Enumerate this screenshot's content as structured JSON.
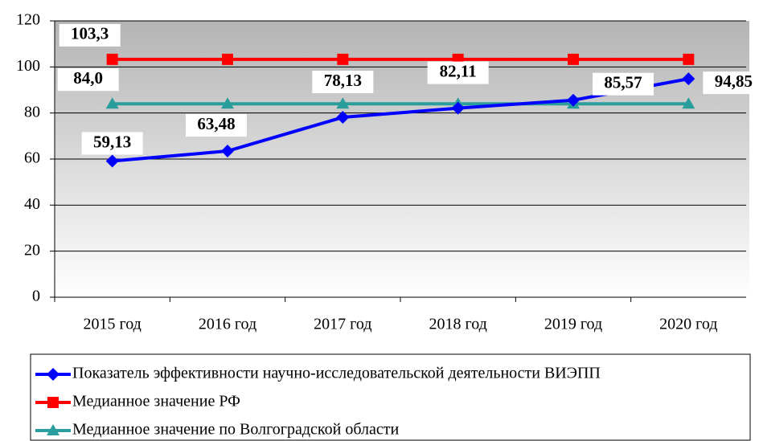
{
  "chart_data": {
    "type": "line",
    "categories": [
      "2015 год",
      "2016 год",
      "2017 год",
      "2018 год",
      "2019 год",
      "2020 год"
    ],
    "series": [
      {
        "name": "Показатель эффективности научно-исследовательской деятельности ВИЭПП",
        "color": "#0000ff",
        "marker": "diamond",
        "values": [
          59.13,
          63.48,
          78.13,
          82.11,
          85.57,
          94.85
        ],
        "value_labels": [
          "59,13",
          "63,48",
          "78,13",
          "82,11",
          "85,57",
          "94,85"
        ]
      },
      {
        "name": "Медианное значение РФ",
        "color": "#ff0000",
        "marker": "square",
        "values": [
          103.3,
          103.3,
          103.3,
          103.3,
          103.3,
          103.3
        ],
        "value_labels": [
          "103,3",
          null,
          null,
          null,
          null,
          null
        ]
      },
      {
        "name": "Медианное значение по Волгоградской области",
        "color": "#2a9d9d",
        "marker": "triangle",
        "values": [
          84.0,
          84.0,
          84.0,
          84.0,
          84.0,
          84.0
        ],
        "value_labels": [
          "84,0",
          null,
          null,
          null,
          null,
          null
        ]
      }
    ],
    "ylim": [
      0,
      120
    ],
    "yticks": [
      0,
      20,
      40,
      60,
      80,
      100,
      120
    ],
    "grid": true,
    "legend": "bottom"
  }
}
